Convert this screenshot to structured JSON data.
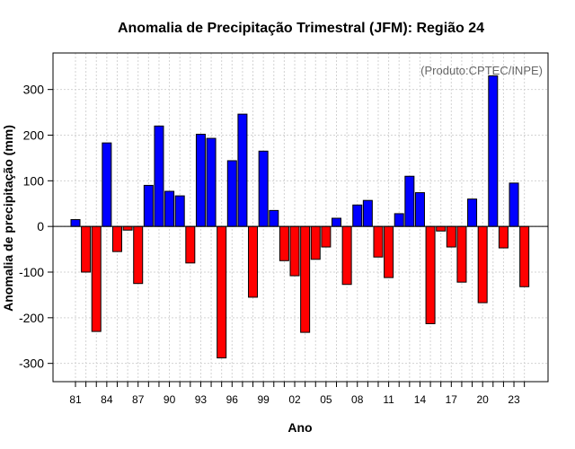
{
  "chart_data": {
    "type": "bar",
    "title": "Anomalia de Precipitação Trimestral (JFM): Região 24",
    "xlabel": "Ano",
    "ylabel": "Anomalia de precipitação (mm)",
    "credit": "(Produto:CPTEC/INPE)",
    "ylim": [
      -340,
      380
    ],
    "yticks": [
      -300,
      -200,
      -100,
      0,
      100,
      200,
      300
    ],
    "ytick_labels": [
      "-300",
      "-200",
      "-100",
      "0",
      "100",
      "200",
      "300"
    ],
    "grid": true,
    "positive_color": "#0000ff",
    "negative_color": "#ff0000",
    "categories": [
      "1981",
      "1982",
      "1983",
      "1984",
      "1985",
      "1986",
      "1987",
      "1988",
      "1989",
      "1990",
      "1991",
      "1992",
      "1993",
      "1994",
      "1995",
      "1996",
      "1997",
      "1998",
      "1999",
      "2000",
      "2001",
      "2002",
      "2003",
      "2004",
      "2005",
      "2006",
      "2007",
      "2008",
      "2009",
      "2010",
      "2011",
      "2012",
      "2013",
      "2014",
      "2015",
      "2016",
      "2017",
      "2018",
      "2019",
      "2020",
      "2021",
      "2022",
      "2023",
      "2024"
    ],
    "xtick_labels": [
      "81",
      "",
      "",
      "84",
      "",
      "",
      "87",
      "",
      "",
      "90",
      "",
      "",
      "93",
      "",
      "",
      "96",
      "",
      "",
      "99",
      "",
      "",
      "02",
      "",
      "",
      "05",
      "",
      "",
      "08",
      "",
      "",
      "11",
      "",
      "",
      "14",
      "",
      "",
      "17",
      "",
      "",
      "20",
      "",
      "",
      "23",
      ""
    ],
    "values": [
      15,
      -100,
      -230,
      183,
      -55,
      -8,
      -125,
      90,
      220,
      77,
      67,
      -80,
      202,
      193,
      -288,
      144,
      246,
      -155,
      165,
      35,
      -75,
      -108,
      -232,
      -72,
      -45,
      18,
      -127,
      47,
      57,
      -67,
      -112,
      28,
      110,
      74,
      -213,
      -10,
      -45,
      -122,
      60,
      -167,
      330,
      -47,
      95,
      -132
    ]
  }
}
